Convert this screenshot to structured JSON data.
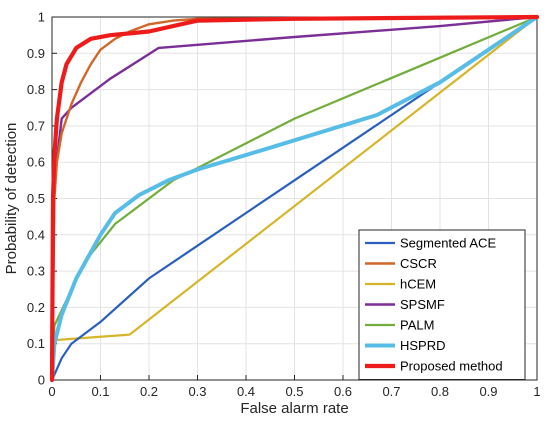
{
  "chart_data": {
    "type": "line",
    "title": "",
    "xlabel": "False alarm rate",
    "ylabel": "Probability of detection",
    "xlim": [
      0,
      1
    ],
    "ylim": [
      0,
      1
    ],
    "xticks": [
      "0",
      "0.1",
      "0.2",
      "0.3",
      "0.4",
      "0.5",
      "0.6",
      "0.7",
      "0.8",
      "0.9",
      "1"
    ],
    "yticks": [
      "0",
      "0.1",
      "0.2",
      "0.3",
      "0.4",
      "0.5",
      "0.6",
      "0.7",
      "0.8",
      "0.9",
      "1"
    ],
    "grid": true,
    "legend_position": "bottom-right",
    "series": [
      {
        "name": "Segmented ACE",
        "color": "#2a5fbd",
        "points": [
          [
            0,
            0
          ],
          [
            0.01,
            0.03
          ],
          [
            0.02,
            0.06
          ],
          [
            0.04,
            0.1
          ],
          [
            0.1,
            0.16
          ],
          [
            0.2,
            0.28
          ],
          [
            0.3,
            0.37
          ],
          [
            0.4,
            0.46
          ],
          [
            0.5,
            0.55
          ],
          [
            0.6,
            0.64
          ],
          [
            0.7,
            0.73
          ],
          [
            0.8,
            0.82
          ],
          [
            0.9,
            0.91
          ],
          [
            1,
            1
          ]
        ]
      },
      {
        "name": "CSCR",
        "color": "#d2672a",
        "points": [
          [
            0,
            0
          ],
          [
            0.005,
            0.5
          ],
          [
            0.01,
            0.6
          ],
          [
            0.02,
            0.68
          ],
          [
            0.04,
            0.76
          ],
          [
            0.06,
            0.82
          ],
          [
            0.08,
            0.87
          ],
          [
            0.1,
            0.91
          ],
          [
            0.13,
            0.94
          ],
          [
            0.16,
            0.96
          ],
          [
            0.2,
            0.98
          ],
          [
            0.25,
            0.99
          ],
          [
            0.3,
            0.995
          ],
          [
            1,
            1
          ]
        ]
      },
      {
        "name": "hCEM",
        "color": "#d7b52b",
        "points": [
          [
            0,
            0
          ],
          [
            0.005,
            0.11
          ],
          [
            0.16,
            0.125
          ],
          [
            1,
            1
          ]
        ]
      },
      {
        "name": "SPSMF",
        "color": "#7b2f96",
        "points": [
          [
            0,
            0
          ],
          [
            0.005,
            0.55
          ],
          [
            0.02,
            0.72
          ],
          [
            0.04,
            0.75
          ],
          [
            0.12,
            0.83
          ],
          [
            0.22,
            0.915
          ],
          [
            0.5,
            0.945
          ],
          [
            0.8,
            0.975
          ],
          [
            1,
            1
          ]
        ]
      },
      {
        "name": "PALM",
        "color": "#72ad3c",
        "points": [
          [
            0,
            0
          ],
          [
            0.005,
            0.15
          ],
          [
            0.03,
            0.22
          ],
          [
            0.07,
            0.33
          ],
          [
            0.13,
            0.43
          ],
          [
            0.25,
            0.55
          ],
          [
            0.5,
            0.72
          ],
          [
            0.75,
            0.86
          ],
          [
            1,
            1
          ]
        ]
      },
      {
        "name": "HSPRD",
        "color": "#58bde6",
        "points": [
          [
            0,
            0
          ],
          [
            0.005,
            0.1
          ],
          [
            0.02,
            0.18
          ],
          [
            0.05,
            0.28
          ],
          [
            0.1,
            0.4
          ],
          [
            0.13,
            0.46
          ],
          [
            0.18,
            0.51
          ],
          [
            0.24,
            0.55
          ],
          [
            0.3,
            0.58
          ],
          [
            0.45,
            0.64
          ],
          [
            0.67,
            0.73
          ],
          [
            0.8,
            0.82
          ],
          [
            0.9,
            0.91
          ],
          [
            1,
            1
          ]
        ]
      },
      {
        "name": "Proposed method",
        "color": "#ee1b1b",
        "points": [
          [
            0,
            0
          ],
          [
            0.002,
            0.5
          ],
          [
            0.005,
            0.62
          ],
          [
            0.01,
            0.72
          ],
          [
            0.02,
            0.82
          ],
          [
            0.03,
            0.87
          ],
          [
            0.05,
            0.915
          ],
          [
            0.08,
            0.94
          ],
          [
            0.12,
            0.95
          ],
          [
            0.2,
            0.96
          ],
          [
            0.3,
            0.99
          ],
          [
            0.5,
            0.995
          ],
          [
            1,
            1
          ]
        ]
      }
    ]
  }
}
